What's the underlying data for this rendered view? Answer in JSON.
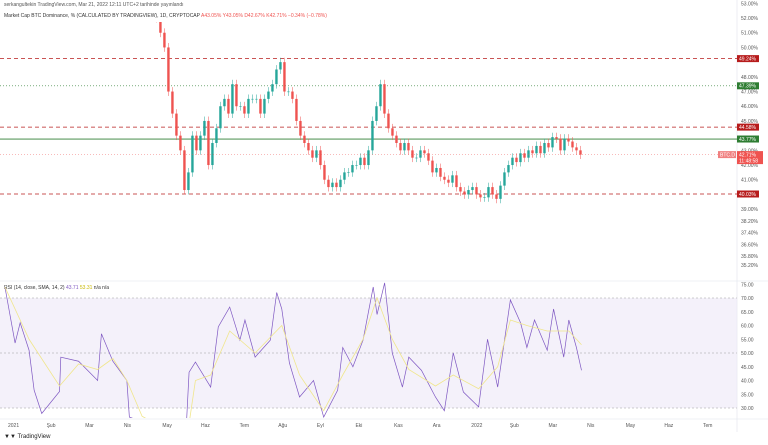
{
  "header": {
    "published": "serkangultekin TradingView.com, Mar 21, 2022 12:11 UTC+2 tarihinde yayınlandı"
  },
  "legend": {
    "title": "Market Cap BTC Dominance, % (CALCULATED BY TRADINGVIEW), 1D, CRYPTOCAP",
    "open": "A43.05%",
    "high": "Y43.05%",
    "low": "D42.67%",
    "close": "K42.71%",
    "change": "−0.34% (−0.78%)"
  },
  "rsi_legend": {
    "title": "RSI (14, close, SMA, 14, 2)",
    "rsi": "43.71",
    "sma": "53.31",
    "na1": "n/a",
    "na2": "n/a"
  },
  "footer": {
    "brand": "TradingView"
  },
  "colors": {
    "up": "#26a69a",
    "down": "#ef5350",
    "level_red": "#b71c1c",
    "level_green": "#2e7d32",
    "rsi": "#7e57c2",
    "sma": "#f0e68c"
  },
  "chart_data": [
    {
      "type": "candlestick",
      "title": "Market Cap BTC Dominance, %",
      "x_unit": "days since 2021-01-01",
      "start_day": 109,
      "step_days": 3.15,
      "ylim": [
        35.2,
        53.0
      ],
      "closes": [
        53,
        52.5,
        52,
        51,
        50,
        47,
        45.5,
        44,
        43,
        40.3,
        41.5,
        44,
        43,
        44,
        45,
        42,
        43.5,
        44.5,
        46,
        46.5,
        45.5,
        47.5,
        46,
        46,
        45.5,
        46.5,
        46.5,
        46.5,
        45.5,
        46.5,
        47,
        47.5,
        48.5,
        49,
        47,
        47,
        46.5,
        45,
        44,
        43.5,
        43,
        42.5,
        43,
        42,
        41,
        40.5,
        40.8,
        40.5,
        41,
        41.5,
        41.5,
        42,
        42,
        42.5,
        42,
        43,
        45,
        46,
        47.5,
        45.5,
        44.5,
        44,
        43.5,
        43,
        43.5,
        43,
        42.5,
        42.5,
        43,
        42.8,
        42.3,
        41.5,
        41.8,
        41.2,
        41,
        40.8,
        41.3,
        40.5,
        40.2,
        40,
        40.3,
        40.5,
        40,
        39.8,
        39.8,
        40.5,
        40,
        39.7,
        40.6,
        41.5,
        42,
        42.5,
        42.2,
        42.8,
        42.5,
        43,
        42.8,
        43.3,
        42.8,
        43.5,
        43.2,
        43.9,
        43.8,
        43,
        43.8,
        43.6,
        43.2,
        43,
        42.71
      ],
      "y_ticks": [
        "53.00%",
        "52.00%",
        "51.00%",
        "50.00%",
        "48.00%",
        "47.00%",
        "46.00%",
        "45.00%",
        "43.00%",
        "42.00%",
        "41.00%",
        "39.00%",
        "38.20%",
        "37.40%",
        "36.60%",
        "35.80%",
        "35.20%"
      ],
      "y_tick_values": [
        53,
        52,
        51,
        50,
        48,
        47,
        46,
        45,
        43,
        42,
        41,
        39,
        38.2,
        37.4,
        36.6,
        35.8,
        35.2
      ],
      "levels": [
        {
          "value": 49.24,
          "label": "49.24%",
          "style": "dashed",
          "color": "red"
        },
        {
          "value": 47.39,
          "label": "47.39%",
          "style": "dotted",
          "color": "green"
        },
        {
          "value": 44.58,
          "label": "44.58%",
          "style": "dashed",
          "color": "red"
        },
        {
          "value": 43.77,
          "label": "43.77%",
          "style": "solid",
          "color": "green"
        },
        {
          "value": 40.03,
          "label": "40.03%",
          "style": "dashed",
          "color": "red"
        }
      ],
      "last": {
        "value": 42.71,
        "label": "42.71%",
        "symbol": "BTC.D",
        "countdown": "11:48:58"
      }
    },
    {
      "type": "line",
      "title": "RSI (14, close, SMA, 14, 2)",
      "ylim": [
        27,
        75
      ],
      "y_ticks": [
        "75.00",
        "70.00",
        "65.00",
        "60.00",
        "55.00",
        "50.00",
        "45.00",
        "40.00",
        "35.00",
        "30.00"
      ],
      "y_tick_values": [
        75,
        70,
        65,
        60,
        55,
        50,
        45,
        40,
        35,
        30
      ],
      "bands": [
        30,
        50,
        70
      ],
      "series": [
        {
          "name": "RSI",
          "points": [
            [
              -4,
              74
            ],
            [
              4,
              53.6
            ],
            [
              8,
              61
            ],
            [
              15,
              51
            ],
            [
              19,
              36.5
            ],
            [
              25,
              28
            ],
            [
              39,
              36
            ],
            [
              40,
              48.5
            ],
            [
              54,
              47
            ],
            [
              69,
              40
            ],
            [
              72,
              57
            ],
            [
              81,
              47
            ],
            [
              92,
              40
            ],
            [
              94,
              26.7
            ],
            [
              104,
              25
            ],
            [
              110,
              18
            ],
            [
              122,
              26
            ],
            [
              126,
              20
            ],
            [
              134,
              18
            ],
            [
              139,
              25
            ],
            [
              141,
              43
            ],
            [
              146,
              46.7
            ],
            [
              158,
              37.6
            ],
            [
              164,
              59.5
            ],
            [
              173,
              66.7
            ],
            [
              181,
              54.7
            ],
            [
              185,
              62
            ],
            [
              193,
              48.5
            ],
            [
              205,
              54.7
            ],
            [
              210,
              72
            ],
            [
              214,
              66
            ],
            [
              220,
              46.4
            ],
            [
              228,
              34
            ],
            [
              239,
              40
            ],
            [
              247,
              26.7
            ],
            [
              258,
              36.5
            ],
            [
              262,
              52
            ],
            [
              270,
              45
            ],
            [
              278,
              54.7
            ],
            [
              286,
              74
            ],
            [
              289,
              64
            ],
            [
              295,
              75.5
            ],
            [
              301,
              50
            ],
            [
              309,
              37.6
            ],
            [
              314,
              48.5
            ],
            [
              324,
              43.7
            ],
            [
              335,
              34
            ],
            [
              342,
              29
            ],
            [
              349,
              50
            ],
            [
              357,
              35.8
            ],
            [
              369,
              30.4
            ],
            [
              376,
              55
            ],
            [
              384,
              37.6
            ],
            [
              394,
              69.3
            ],
            [
              402,
              61
            ],
            [
              407,
              52
            ],
            [
              413,
              62
            ],
            [
              423,
              51
            ],
            [
              428,
              66
            ],
            [
              436,
              48.5
            ],
            [
              440,
              62
            ],
            [
              446,
              52
            ],
            [
              450,
              43.7
            ]
          ]
        },
        {
          "name": "SMA",
          "points": [
            [
              -4,
              74
            ],
            [
              15,
              55
            ],
            [
              39,
              38
            ],
            [
              54,
              46
            ],
            [
              69,
              44
            ],
            [
              81,
              48
            ],
            [
              92,
              40
            ],
            [
              104,
              27
            ],
            [
              139,
              18
            ],
            [
              146,
              40
            ],
            [
              158,
              42
            ],
            [
              173,
              58
            ],
            [
              193,
              50
            ],
            [
              214,
              60
            ],
            [
              228,
              42
            ],
            [
              247,
              29
            ],
            [
              262,
              42
            ],
            [
              278,
              55
            ],
            [
              289,
              70
            ],
            [
              301,
              55
            ],
            [
              314,
              44
            ],
            [
              335,
              38
            ],
            [
              349,
              42
            ],
            [
              369,
              37
            ],
            [
              384,
              45
            ],
            [
              394,
              62
            ],
            [
              407,
              60
            ],
            [
              423,
              58
            ],
            [
              440,
              58
            ],
            [
              450,
              53
            ]
          ]
        }
      ]
    },
    {
      "type": "x_axis",
      "labels": [
        "2021",
        "Şub",
        "Mar",
        "Nis",
        "May",
        "Haz",
        "Tem",
        "Ağu",
        "Eyl",
        "Eki",
        "Kas",
        "Ara",
        "2022",
        "Şub",
        "Mar",
        "Nis",
        "May",
        "Haz",
        "Tem"
      ]
    }
  ]
}
